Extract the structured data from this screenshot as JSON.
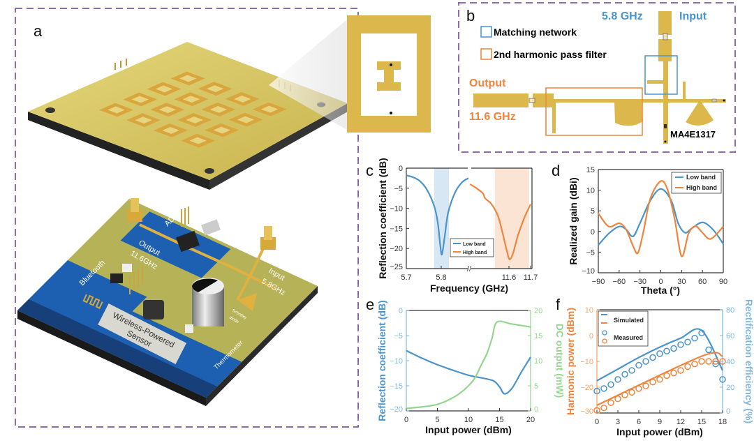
{
  "panels": {
    "a": {
      "label": "a",
      "pcb_labels": {
        "adc": "ADC",
        "output": "Output",
        "output_freq": "11.6GHz",
        "bluetooth": "Bluetooth",
        "input": "Input",
        "input_freq": "5.8GHz",
        "schottky_1": "Schottky",
        "schottky_2": "diode",
        "sensor_1": "Wireless-Powered",
        "sensor_2": "Sensor",
        "thermometer": "Thermometer"
      }
    },
    "b": {
      "label": "b",
      "legend": [
        "Matching network",
        "2nd harmonic pass filter"
      ],
      "input_freq": "5.8 GHz",
      "input": "Input",
      "output": "Output",
      "output_freq": "11.6 GHz",
      "diode": "MA4E1317"
    },
    "c": {
      "label": "c"
    },
    "d": {
      "label": "d"
    },
    "e": {
      "label": "e"
    },
    "f": {
      "label": "f"
    }
  },
  "colors": {
    "blue": "#4a94cc",
    "orange": "#f0843c",
    "green": "#93d68e",
    "purple_frame": "#8e6bb0",
    "gold": "#dcb84c"
  },
  "chart_data": [
    {
      "panel": "c",
      "type": "line",
      "xlabel": "Frequency (GHz)",
      "ylabel": "Reflection coefficient (dB)",
      "x_axis_broken": true,
      "xticks": [
        5.7,
        5.8,
        11.6,
        11.7
      ],
      "xtick_labels": [
        "5.7",
        "5.8",
        "11.6",
        "11.7"
      ],
      "ylim": [
        -25,
        0
      ],
      "yticks": [
        0,
        -5,
        -10,
        -15,
        -20,
        -25
      ],
      "ytick_labels": [
        "0",
        "−5",
        "−10",
        "−15",
        "−20",
        "−25"
      ],
      "legend": "bottom-center",
      "shaded_bands": [
        {
          "series": "Low band",
          "range": [
            5.78,
            5.822
          ]
        },
        {
          "series": "High band",
          "range": [
            11.535,
            11.693
          ]
        }
      ],
      "series": [
        {
          "name": "Low band",
          "color": "#4a94cc",
          "points": [
            [
              5.7,
              -1.8
            ],
            [
              5.72,
              -2.3
            ],
            [
              5.74,
              -3.3
            ],
            [
              5.76,
              -5.5
            ],
            [
              5.78,
              -9.5
            ],
            [
              5.79,
              -13.5
            ],
            [
              5.797,
              -19
            ],
            [
              5.802,
              -21.5
            ],
            [
              5.81,
              -17
            ],
            [
              5.82,
              -11
            ],
            [
              5.84,
              -6
            ],
            [
              5.86,
              -3.5
            ],
            [
              5.878,
              -2.5
            ]
          ]
        },
        {
          "name": "High band",
          "color": "#f0843c",
          "points": [
            [
              11.42,
              -4
            ],
            [
              11.45,
              -5
            ],
            [
              11.48,
              -6.3
            ],
            [
              11.49,
              -7.5
            ],
            [
              11.52,
              -9
            ],
            [
              11.55,
              -12
            ],
            [
              11.57,
              -16
            ],
            [
              11.59,
              -20.5
            ],
            [
              11.603,
              -22.7
            ],
            [
              11.62,
              -21
            ],
            [
              11.64,
              -17
            ],
            [
              11.67,
              -12.5
            ],
            [
              11.7,
              -9
            ]
          ]
        }
      ]
    },
    {
      "panel": "d",
      "type": "line",
      "xlabel": "Theta (°)",
      "ylabel": "Realized gain (dBi)",
      "xlim": [
        -90,
        90
      ],
      "xticks": [
        -90,
        -60,
        -30,
        0,
        30,
        60,
        90
      ],
      "xtick_labels": [
        "−90",
        "−60",
        "−30",
        "0",
        "30",
        "60",
        "90"
      ],
      "ylim": [
        -10,
        15
      ],
      "yticks": [
        15,
        10,
        5,
        0,
        -5,
        -10
      ],
      "ytick_labels": [
        "15",
        "10",
        "5",
        "0",
        "−5",
        "−10"
      ],
      "legend": "top-right",
      "series": [
        {
          "name": "Low band",
          "color": "#4a94cc",
          "points": [
            [
              -90,
              -3.3
            ],
            [
              -75,
              -0.5
            ],
            [
              -60,
              1.2
            ],
            [
              -50,
              0.5
            ],
            [
              -40,
              -1.2
            ],
            [
              -30,
              2
            ],
            [
              -15,
              7.5
            ],
            [
              0,
              10.3
            ],
            [
              15,
              7.5
            ],
            [
              25,
              2
            ],
            [
              35,
              -0.3
            ],
            [
              45,
              0.8
            ],
            [
              60,
              2.2
            ],
            [
              75,
              0.5
            ],
            [
              90,
              -3
            ]
          ]
        },
        {
          "name": "High band",
          "color": "#f0843c",
          "points": [
            [
              -90,
              4.4
            ],
            [
              -75,
              1.2
            ],
            [
              -60,
              2
            ],
            [
              -50,
              0.5
            ],
            [
              -40,
              -3.5
            ],
            [
              -33,
              -5.2
            ],
            [
              -25,
              0
            ],
            [
              -15,
              8
            ],
            [
              0,
              12.2
            ],
            [
              10,
              10
            ],
            [
              20,
              3
            ],
            [
              30,
              -6
            ],
            [
              40,
              -0.5
            ],
            [
              50,
              1.3
            ],
            [
              60,
              -0.3
            ],
            [
              72,
              -1.8
            ],
            [
              90,
              1.2
            ]
          ]
        }
      ]
    },
    {
      "panel": "e",
      "type": "line",
      "xlabel": "Input power (dBm)",
      "ylabel": "Reflection coefficient (dB)",
      "ylabel_right": "DC output (mW)",
      "xlim": [
        0,
        20
      ],
      "xticks": [
        0,
        5,
        10,
        15,
        20
      ],
      "xtick_labels": [
        "0",
        "5",
        "10",
        "15",
        "20"
      ],
      "ylim": [
        -20,
        0
      ],
      "yticks": [
        0,
        -5,
        -10,
        -15,
        -20
      ],
      "ytick_labels": [
        "0",
        "−5",
        "−10",
        "−15",
        "−20"
      ],
      "ylim_right": [
        0,
        20
      ],
      "yticks_right": [
        20,
        15,
        10,
        5,
        0
      ],
      "ytick_labels_right": [
        "20",
        "15",
        "10",
        "5",
        "0"
      ],
      "series": [
        {
          "axis": "left",
          "color": "#4a94cc",
          "points": [
            [
              0,
              -8
            ],
            [
              2.5,
              -9.5
            ],
            [
              5,
              -10.8
            ],
            [
              7.5,
              -11.9
            ],
            [
              10,
              -12.9
            ],
            [
              12,
              -13.4
            ],
            [
              14,
              -14
            ],
            [
              15,
              -15.2
            ],
            [
              15.8,
              -16.6
            ],
            [
              17,
              -15.5
            ],
            [
              18.5,
              -12.3
            ],
            [
              20,
              -9.3
            ]
          ]
        },
        {
          "axis": "right",
          "color": "#93d68e",
          "points": [
            [
              0,
              0.5
            ],
            [
              2.5,
              0.8
            ],
            [
              5,
              1.3
            ],
            [
              7,
              2.3
            ],
            [
              8.5,
              3.4
            ],
            [
              10,
              5
            ],
            [
              11,
              6.5
            ],
            [
              12,
              9
            ],
            [
              13,
              11.5
            ],
            [
              13.8,
              14.5
            ],
            [
              14.6,
              17.7
            ],
            [
              17,
              17.3
            ],
            [
              20,
              16.7
            ]
          ]
        }
      ]
    },
    {
      "panel": "f",
      "type": "line+scatter",
      "xlabel": "Input power (dBm)",
      "ylabel": "Harmonic power (dBm)",
      "ylabel_right": "Rectification efficiency (%)",
      "xlim": [
        0,
        18
      ],
      "xticks": [
        0,
        3,
        6,
        9,
        12,
        15,
        18
      ],
      "xtick_labels": [
        "0",
        "3",
        "6",
        "9",
        "12",
        "15",
        "18"
      ],
      "ylim": [
        -30,
        10
      ],
      "yticks": [
        10,
        0,
        -10,
        -20,
        -30
      ],
      "ytick_labels": [
        "10",
        "0",
        "−10",
        "−20",
        "−30"
      ],
      "ylim_right": [
        0,
        80
      ],
      "yticks_right": [
        80,
        60,
        40,
        20,
        0
      ],
      "ytick_labels_right": [
        "80",
        "60",
        "40",
        "20",
        "0"
      ],
      "legend": "top-left",
      "legend_entries": [
        "Simulated",
        "Measured"
      ],
      "series": [
        {
          "kind": "line",
          "axis": "right",
          "legend": "Simulated",
          "color": "#4a94cc",
          "points": [
            [
              0,
              25
            ],
            [
              3,
              34
            ],
            [
              6,
              43
            ],
            [
              9,
              51
            ],
            [
              12,
              58
            ],
            [
              15,
              64
            ],
            [
              18,
              33
            ]
          ]
        },
        {
          "kind": "line",
          "axis": "left",
          "legend": "Simulated",
          "color": "#f0843c",
          "points": [
            [
              0,
              -27
            ],
            [
              15,
              -8
            ],
            [
              18,
              -8
            ]
          ]
        },
        {
          "kind": "scatter",
          "axis": "right",
          "legend": "Measured",
          "color": "#4a94cc",
          "points": [
            [
              0,
              17
            ],
            [
              1,
              19
            ],
            [
              2,
              22
            ],
            [
              3,
              26
            ],
            [
              4,
              30
            ],
            [
              5,
              33
            ],
            [
              6,
              37
            ],
            [
              7,
              40
            ],
            [
              8,
              43
            ],
            [
              9,
              46
            ],
            [
              10,
              48
            ],
            [
              11,
              50
            ],
            [
              12,
              53
            ],
            [
              13,
              55
            ],
            [
              14,
              58
            ],
            [
              15,
              62
            ],
            [
              16,
              49
            ],
            [
              17,
              38
            ],
            [
              18,
              26
            ]
          ]
        },
        {
          "kind": "scatter",
          "axis": "left",
          "legend": "Measured",
          "color": "#f0843c",
          "points": [
            [
              0,
              -29
            ],
            [
              1,
              -28
            ],
            [
              2,
              -26
            ],
            [
              3,
              -24.5
            ],
            [
              4,
              -23
            ],
            [
              5,
              -22
            ],
            [
              6,
              -20.5
            ],
            [
              7,
              -19.5
            ],
            [
              8,
              -18
            ],
            [
              9,
              -17
            ],
            [
              10,
              -15.5
            ],
            [
              11,
              -14.5
            ],
            [
              12,
              -13.5
            ],
            [
              13,
              -12
            ],
            [
              14,
              -11
            ],
            [
              15,
              -10
            ],
            [
              16,
              -10
            ],
            [
              17,
              -10
            ],
            [
              18,
              -10
            ]
          ]
        }
      ]
    }
  ]
}
